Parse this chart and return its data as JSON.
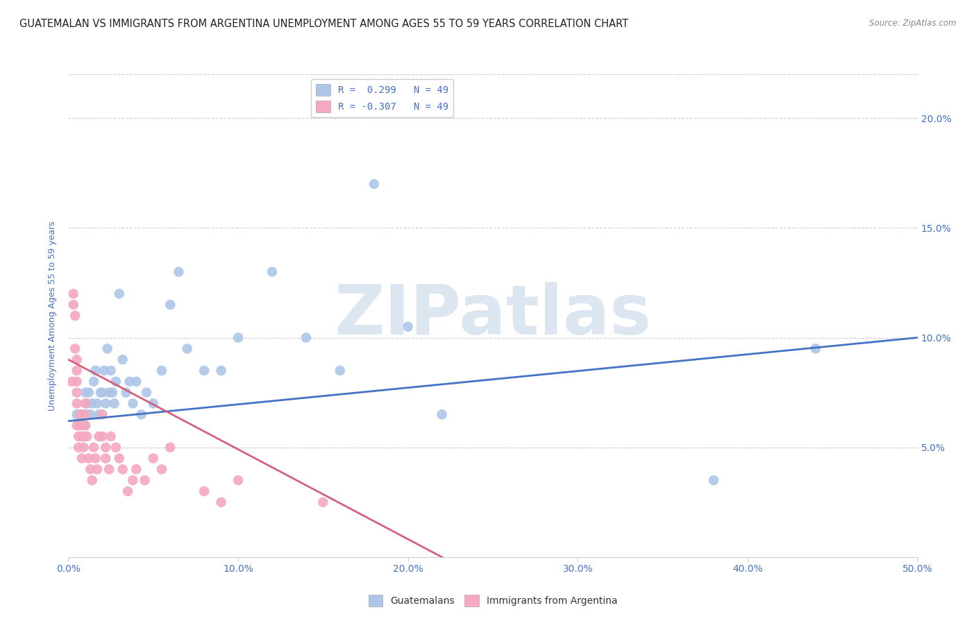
{
  "title": "GUATEMALAN VS IMMIGRANTS FROM ARGENTINA UNEMPLOYMENT AMONG AGES 55 TO 59 YEARS CORRELATION CHART",
  "source": "Source: ZipAtlas.com",
  "ylabel": "Unemployment Among Ages 55 to 59 years",
  "watermark": "ZIPatlas",
  "legend_entry_blue": "R =  0.299   N = 49",
  "legend_entry_pink": "R = -0.307   N = 49",
  "legend_label_blue": "Guatemalans",
  "legend_label_pink": "Immigrants from Argentina",
  "xlim": [
    0.0,
    0.5
  ],
  "ylim": [
    0.0,
    0.22
  ],
  "xticks": [
    0.0,
    0.1,
    0.2,
    0.3,
    0.4,
    0.5
  ],
  "yticks": [
    0.0,
    0.05,
    0.1,
    0.15,
    0.2
  ],
  "xtick_labels": [
    "0.0%",
    "10.0%",
    "20.0%",
    "30.0%",
    "40.0%",
    "50.0%"
  ],
  "ytick_labels": [
    "",
    "5.0%",
    "10.0%",
    "15.0%",
    "20.0%"
  ],
  "blue_scatter_x": [
    0.005,
    0.007,
    0.008,
    0.009,
    0.01,
    0.01,
    0.01,
    0.011,
    0.012,
    0.013,
    0.014,
    0.015,
    0.016,
    0.017,
    0.018,
    0.019,
    0.02,
    0.021,
    0.022,
    0.023,
    0.024,
    0.025,
    0.026,
    0.027,
    0.028,
    0.03,
    0.032,
    0.034,
    0.036,
    0.038,
    0.04,
    0.043,
    0.046,
    0.05,
    0.055,
    0.06,
    0.065,
    0.07,
    0.08,
    0.09,
    0.1,
    0.12,
    0.14,
    0.16,
    0.18,
    0.2,
    0.22,
    0.38,
    0.44
  ],
  "blue_scatter_y": [
    0.065,
    0.06,
    0.065,
    0.055,
    0.075,
    0.065,
    0.06,
    0.07,
    0.075,
    0.065,
    0.07,
    0.08,
    0.085,
    0.07,
    0.065,
    0.075,
    0.075,
    0.085,
    0.07,
    0.095,
    0.075,
    0.085,
    0.075,
    0.07,
    0.08,
    0.12,
    0.09,
    0.075,
    0.08,
    0.07,
    0.08,
    0.065,
    0.075,
    0.07,
    0.085,
    0.115,
    0.13,
    0.095,
    0.085,
    0.085,
    0.1,
    0.13,
    0.1,
    0.085,
    0.17,
    0.105,
    0.065,
    0.035,
    0.095
  ],
  "pink_scatter_x": [
    0.002,
    0.003,
    0.003,
    0.004,
    0.004,
    0.005,
    0.005,
    0.005,
    0.005,
    0.005,
    0.005,
    0.006,
    0.006,
    0.007,
    0.007,
    0.008,
    0.008,
    0.009,
    0.01,
    0.01,
    0.01,
    0.011,
    0.012,
    0.013,
    0.014,
    0.015,
    0.016,
    0.017,
    0.018,
    0.02,
    0.02,
    0.022,
    0.022,
    0.024,
    0.025,
    0.028,
    0.03,
    0.032,
    0.035,
    0.038,
    0.04,
    0.045,
    0.05,
    0.055,
    0.06,
    0.08,
    0.09,
    0.1,
    0.15
  ],
  "pink_scatter_y": [
    0.08,
    0.12,
    0.115,
    0.11,
    0.095,
    0.09,
    0.085,
    0.08,
    0.075,
    0.07,
    0.06,
    0.055,
    0.05,
    0.065,
    0.06,
    0.055,
    0.045,
    0.05,
    0.07,
    0.065,
    0.06,
    0.055,
    0.045,
    0.04,
    0.035,
    0.05,
    0.045,
    0.04,
    0.055,
    0.065,
    0.055,
    0.05,
    0.045,
    0.04,
    0.055,
    0.05,
    0.045,
    0.04,
    0.03,
    0.035,
    0.04,
    0.035,
    0.045,
    0.04,
    0.05,
    0.03,
    0.025,
    0.035,
    0.025
  ],
  "blue_line_x": [
    0.0,
    0.5
  ],
  "blue_line_y": [
    0.062,
    0.1
  ],
  "pink_line_x": [
    0.0,
    0.22
  ],
  "pink_line_y": [
    0.09,
    0.0
  ],
  "scatter_color_blue": "#adc6e8",
  "scatter_color_pink": "#f5a8c0",
  "line_color_blue": "#4472c4",
  "line_color_pink": "#d46080",
  "axis_color": "#4472c4",
  "grid_color": "#cccccc",
  "background_color": "#ffffff",
  "watermark_color": "#dce6f0",
  "title_fontsize": 10.5,
  "axis_label_fontsize": 9,
  "tick_fontsize": 10,
  "legend_fontsize": 10
}
